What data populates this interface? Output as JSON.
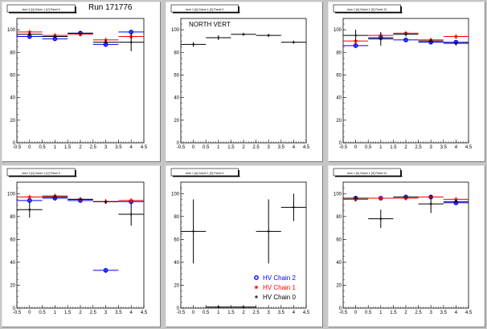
{
  "run_label": "Run 171776",
  "colors": {
    "chain2": "#0000ff",
    "chain1": "#ff0000",
    "chain0": "#000000"
  },
  "chart_data": [
    {
      "type": "scatter",
      "title": "dom 1 [h] Gdom 1 [V] Panel 0",
      "xlim": [
        -0.5,
        4.5
      ],
      "ylim": [
        0,
        110
      ],
      "xticks": [
        "-0.5",
        "0",
        "0.5",
        "1",
        "1.5",
        "2",
        "2.5",
        "3",
        "3.5",
        "4",
        "4.5"
      ],
      "yticks": [
        "0",
        "20",
        "40",
        "60",
        "80",
        "100"
      ],
      "annotation": "",
      "series": [
        {
          "name": "HV Chain 2",
          "marker": "circle",
          "color": "#0000ff",
          "points": [
            [
              0,
              94,
              0,
              2
            ],
            [
              1,
              92,
              0,
              2
            ],
            [
              2,
              97,
              0,
              2
            ],
            [
              3,
              87,
              0,
              2
            ],
            [
              4,
              98,
              0,
              2
            ]
          ]
        },
        {
          "name": "HV Chain 1",
          "marker": "star",
          "color": "#ff0000",
          "points": [
            [
              0,
              98,
              0,
              2
            ],
            [
              1,
              95,
              0,
              2
            ],
            [
              2,
              96,
              0,
              2
            ],
            [
              3,
              91,
              0,
              2
            ],
            [
              4,
              94,
              0,
              2
            ]
          ]
        },
        {
          "name": "HV Chain 0",
          "marker": "plus",
          "color": "#000000",
          "points": [
            [
              0,
              96,
              0,
              2
            ],
            [
              1,
              94,
              0,
              2
            ],
            [
              2,
              97,
              0,
              2
            ],
            [
              3,
              89,
              0,
              2
            ],
            [
              4,
              89,
              0,
              8
            ]
          ]
        }
      ]
    },
    {
      "type": "scatter",
      "title": "dom 1 [h] Gdom 1 [V] Panel 0",
      "xlim": [
        -0.5,
        4.5
      ],
      "ylim": [
        0,
        110
      ],
      "xticks": [
        "-0.5",
        "0",
        "0.5",
        "1",
        "1.5",
        "2",
        "2.5",
        "3",
        "3.5",
        "4",
        "4.5"
      ],
      "yticks": [
        "0",
        "20",
        "40",
        "60",
        "80",
        "100"
      ],
      "annotation": "NORTH VERT",
      "series": [
        {
          "name": "HV Chain 0",
          "marker": "plus",
          "color": "#000000",
          "points": [
            [
              0,
              87,
              0,
              2
            ],
            [
              1,
              93,
              0,
              2
            ],
            [
              2,
              96,
              0,
              1
            ],
            [
              3,
              95,
              0,
              1
            ],
            [
              4,
              89,
              0,
              1
            ]
          ]
        }
      ]
    },
    {
      "type": "scatter",
      "title": "dom 1 [h] Gdom 1 [V] Panel 12",
      "xlim": [
        -0.5,
        4.5
      ],
      "ylim": [
        0,
        110
      ],
      "xticks": [
        "-0.5",
        "0",
        "0.5",
        "1",
        "1.5",
        "2",
        "2.5",
        "3",
        "3.5",
        "4",
        "4.5"
      ],
      "yticks": [
        "0",
        "20",
        "40",
        "60",
        "80",
        "100"
      ],
      "annotation": "",
      "series": [
        {
          "name": "HV Chain 2",
          "marker": "circle",
          "color": "#0000ff",
          "points": [
            [
              0,
              86,
              0,
              2
            ],
            [
              1,
              93,
              0,
              2
            ],
            [
              2,
              91,
              0,
              2
            ],
            [
              3,
              89,
              0,
              2
            ],
            [
              4,
              89,
              0,
              2
            ]
          ]
        },
        {
          "name": "HV Chain 1",
          "marker": "star",
          "color": "#ff0000",
          "points": [
            [
              0,
              90,
              0,
              2
            ],
            [
              1,
              95,
              0,
              2
            ],
            [
              2,
              97,
              0,
              2
            ],
            [
              3,
              91,
              0,
              2
            ],
            [
              4,
              94,
              0,
              2
            ]
          ]
        },
        {
          "name": "HV Chain 0",
          "marker": "plus",
          "color": "#000000",
          "points": [
            [
              0,
              95,
              0,
              5
            ],
            [
              1,
              92,
              0,
              6
            ],
            [
              2,
              96,
              0,
              2
            ],
            [
              3,
              90,
              0,
              2
            ],
            [
              4,
              88,
              0,
              2
            ]
          ]
        }
      ]
    },
    {
      "type": "scatter",
      "title": "dom 1 [h] Gdom 1 [V] Panel 0",
      "xlim": [
        -0.5,
        4.5
      ],
      "ylim": [
        0,
        110
      ],
      "xticks": [
        "-0.5",
        "0",
        "0.5",
        "1",
        "1.5",
        "2",
        "2.5",
        "3",
        "3.5",
        "4",
        "4.5"
      ],
      "yticks": [
        "0",
        "20",
        "40",
        "60",
        "80",
        "100"
      ],
      "annotation": "",
      "series": [
        {
          "name": "HV Chain 2",
          "marker": "circle",
          "color": "#0000ff",
          "points": [
            [
              0,
              94,
              0,
              2
            ],
            [
              1,
              96,
              0,
              2
            ],
            [
              2,
              94,
              0,
              2
            ],
            [
              3,
              33,
              0,
              2
            ],
            [
              4,
              93,
              0,
              2
            ]
          ]
        },
        {
          "name": "HV Chain 1",
          "marker": "star",
          "color": "#ff0000",
          "points": [
            [
              0,
              97,
              0,
              2
            ],
            [
              1,
              98,
              0,
              2
            ],
            [
              2,
              95,
              0,
              2
            ],
            [
              3,
              93,
              0,
              2
            ],
            [
              4,
              94,
              0,
              2
            ]
          ]
        },
        {
          "name": "HV Chain 0",
          "marker": "plus",
          "color": "#000000",
          "points": [
            [
              0,
              86,
              0,
              7
            ],
            [
              1,
              97,
              0,
              2
            ],
            [
              2,
              95,
              0,
              2
            ],
            [
              3,
              93,
              0,
              2
            ],
            [
              4,
              82,
              0,
              10
            ]
          ]
        }
      ]
    },
    {
      "type": "scatter",
      "title": "dom 1 [h] Gdom 1 [V] Panel 4",
      "xlim": [
        -0.5,
        4.5
      ],
      "ylim": [
        0,
        110
      ],
      "xticks": [
        "-0.5",
        "0",
        "0.5",
        "1",
        "1.5",
        "2",
        "2.5",
        "3",
        "3.5",
        "4",
        "4.5"
      ],
      "yticks": [
        "0",
        "20",
        "40",
        "60",
        "80",
        "100"
      ],
      "annotation": "",
      "legend": [
        {
          "label": "HV Chain 2",
          "marker": "circle",
          "color": "#0000ff"
        },
        {
          "label": "HV Chain 1",
          "marker": "star",
          "color": "#ff0000"
        },
        {
          "label": "HV Chain 0",
          "marker": "plus",
          "color": "#000000"
        }
      ],
      "series": [
        {
          "name": "HV Chain 0",
          "marker": "plus",
          "color": "#000000",
          "points": [
            [
              0,
              67,
              0,
              28
            ],
            [
              1,
              1,
              0,
              1
            ],
            [
              2,
              1,
              0,
              1
            ],
            [
              3,
              67,
              0,
              28
            ],
            [
              4,
              88,
              0,
              12
            ]
          ]
        }
      ]
    },
    {
      "type": "scatter",
      "title": "dom 1 [h] Gdom 1 [V] Panel 12",
      "xlim": [
        -0.5,
        4.5
      ],
      "ylim": [
        0,
        110
      ],
      "xticks": [
        "-0.5",
        "0",
        "0.5",
        "1",
        "1.5",
        "2",
        "2.5",
        "3",
        "3.5",
        "4",
        "4.5"
      ],
      "yticks": [
        "0",
        "20",
        "40",
        "60",
        "80",
        "100"
      ],
      "annotation": "",
      "series": [
        {
          "name": "HV Chain 2",
          "marker": "circle",
          "color": "#0000ff",
          "points": [
            [
              0,
              96,
              0,
              2
            ],
            [
              1,
              96,
              0,
              2
            ],
            [
              2,
              97,
              0,
              2
            ],
            [
              3,
              97,
              0,
              2
            ],
            [
              4,
              92,
              0,
              2
            ]
          ]
        },
        {
          "name": "HV Chain 1",
          "marker": "star",
          "color": "#ff0000",
          "points": [
            [
              0,
              95,
              0,
              2
            ],
            [
              1,
              96,
              0,
              2
            ],
            [
              2,
              96,
              0,
              2
            ],
            [
              3,
              97,
              0,
              2
            ],
            [
              4,
              95,
              0,
              2
            ]
          ]
        },
        {
          "name": "HV Chain 0",
          "marker": "plus",
          "color": "#000000",
          "points": [
            [
              0,
              96,
              0,
              2
            ],
            [
              1,
              78,
              0,
              8
            ],
            [
              2,
              97,
              0,
              2
            ],
            [
              3,
              91,
              0,
              8
            ],
            [
              4,
              93,
              0,
              2
            ]
          ]
        }
      ]
    }
  ]
}
